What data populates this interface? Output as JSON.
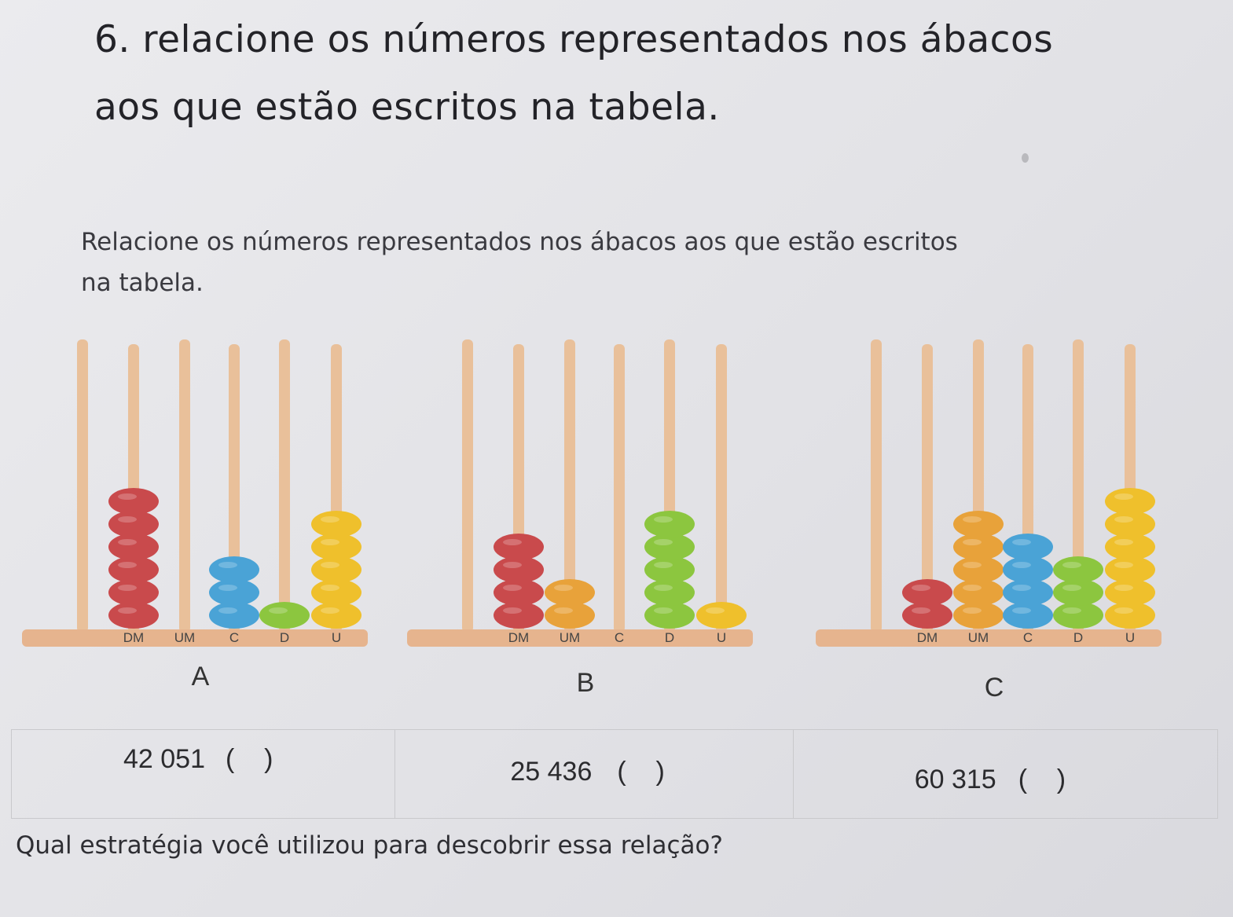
{
  "exercise": {
    "title_line1": "6. relacione os números representados nos ábacos",
    "title_line2": "aos que estão escritos na tabela.",
    "instruction_line1": "Relacione os números representados nos ábacos aos que estão escritos",
    "instruction_line2": "na tabela."
  },
  "colors": {
    "rod": "#e9c09a",
    "base": "#e6b48e",
    "DM": "#c94a4c",
    "UM": "#e8a23a",
    "C": "#4aa3d6",
    "D": "#8cc63f",
    "U": "#efc02c"
  },
  "place_labels": [
    "DM",
    "UM",
    "C",
    "D",
    "U"
  ],
  "abaci": [
    {
      "letter": "A",
      "beads": [
        0,
        6,
        0,
        3,
        1,
        5
      ]
    },
    {
      "letter": "B",
      "beads": [
        0,
        4,
        2,
        0,
        5,
        1
      ]
    },
    {
      "letter": "C",
      "beads": [
        0,
        2,
        5,
        4,
        3,
        6
      ]
    }
  ],
  "table": {
    "cells": [
      {
        "number": "42 051",
        "blank": "(    )"
      },
      {
        "number": "25 436",
        "blank": "(    )"
      },
      {
        "number": "60 315",
        "blank": "(    )"
      }
    ]
  },
  "question": "Qual estratégia você utilizou para descobrir essa relação?"
}
